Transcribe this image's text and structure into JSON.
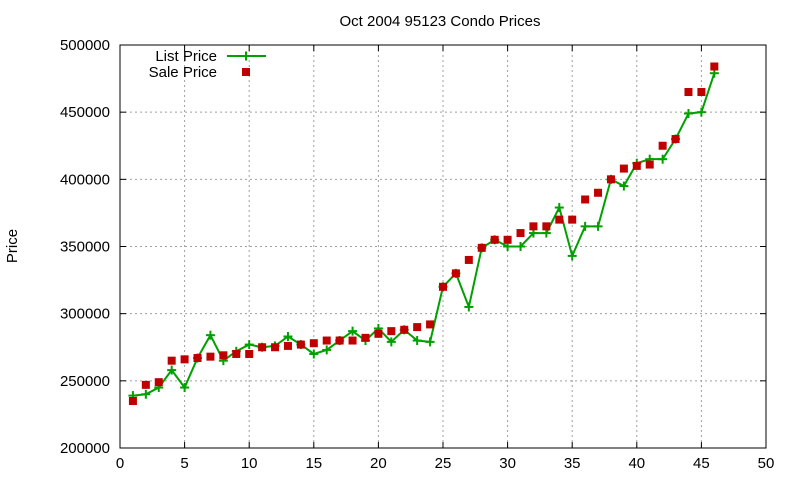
{
  "chart_data": {
    "type": "line",
    "title": "Oct 2004 95123 Condo Prices",
    "xlabel": "",
    "ylabel": "Price",
    "xlim": [
      0,
      50
    ],
    "ylim": [
      200000,
      500000
    ],
    "xticks": [
      0,
      5,
      10,
      15,
      20,
      25,
      30,
      35,
      40,
      45,
      50
    ],
    "yticks": [
      200000,
      250000,
      300000,
      350000,
      400000,
      450000,
      500000
    ],
    "grid": true,
    "legend_position": "top-left",
    "x": [
      1,
      2,
      3,
      4,
      5,
      6,
      7,
      8,
      9,
      10,
      11,
      12,
      13,
      14,
      15,
      16,
      17,
      18,
      19,
      20,
      21,
      22,
      23,
      24,
      25,
      26,
      27,
      28,
      29,
      30,
      31,
      32,
      33,
      34,
      35,
      36,
      37,
      38,
      39,
      40,
      41,
      42,
      43,
      44,
      45,
      46
    ],
    "series": [
      {
        "name": "List Price",
        "style": "linespoints",
        "color": "#00a000",
        "marker": "plus",
        "values": [
          239000,
          240000,
          245000,
          258000,
          245000,
          267000,
          284000,
          265000,
          272000,
          277000,
          275000,
          276000,
          283000,
          277000,
          270000,
          273000,
          280000,
          287000,
          280000,
          289000,
          279000,
          288000,
          280000,
          279000,
          320000,
          330000,
          305000,
          349000,
          355000,
          350000,
          350000,
          360000,
          360000,
          379000,
          343000,
          365000,
          365000,
          400000,
          395000,
          412000,
          415000,
          415000,
          430000,
          449000,
          450000,
          479000
        ]
      },
      {
        "name": "Sale Price",
        "style": "points",
        "color": "#c00000",
        "marker": "square",
        "values": [
          235000,
          247000,
          249000,
          265000,
          266000,
          267000,
          268000,
          269000,
          270000,
          270000,
          275000,
          275000,
          276000,
          277000,
          278000,
          280000,
          280000,
          280000,
          282000,
          285000,
          287000,
          288000,
          290000,
          292000,
          320000,
          330000,
          340000,
          349000,
          355000,
          355000,
          360000,
          365000,
          365000,
          370000,
          370000,
          385000,
          390000,
          400000,
          408000,
          410000,
          411000,
          425000,
          430000,
          465000,
          465000,
          484000
        ]
      }
    ]
  }
}
